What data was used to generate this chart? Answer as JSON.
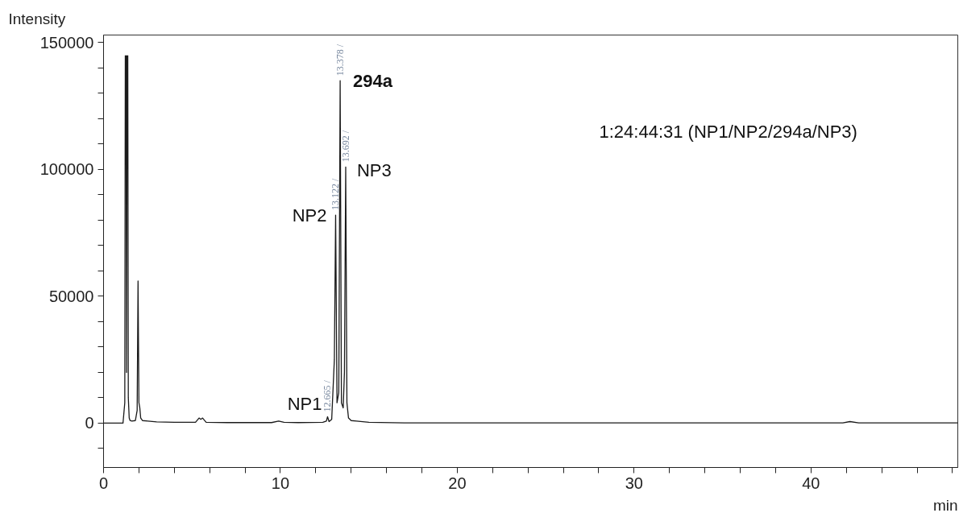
{
  "chart_data": {
    "type": "line",
    "xlabel": "min",
    "ylabel": "Intensity",
    "x": [
      0,
      1.1,
      1.2,
      1.23,
      1.25,
      1.27,
      1.3,
      1.33,
      1.35,
      1.37,
      1.4,
      1.45,
      1.5,
      1.6,
      1.8,
      1.9,
      1.95,
      2.0,
      2.05,
      2.1,
      2.2,
      2.5,
      3,
      4,
      5.2,
      5.4,
      5.5,
      5.6,
      5.8,
      7,
      9.5,
      9.9,
      10.2,
      11,
      12.4,
      12.6,
      12.665,
      12.75,
      12.9,
      13.05,
      13.122,
      13.2,
      13.3,
      13.378,
      13.45,
      13.55,
      13.62,
      13.692,
      13.76,
      13.85,
      14.0,
      14.3,
      15,
      17,
      20,
      30,
      40,
      41.8,
      42.2,
      42.7,
      45,
      48.3
    ],
    "series": [
      {
        "color": "#1a1a1a",
        "values": [
          0,
          0,
          8000,
          145000,
          null,
          145000,
          20000,
          145000,
          null,
          145000,
          10000,
          2000,
          1000,
          800,
          1000,
          5000,
          56000,
          8000,
          6000,
          2000,
          1000,
          800,
          500,
          300,
          300,
          2000,
          1500,
          2000,
          300,
          200,
          200,
          800,
          300,
          200,
          300,
          800,
          2500,
          600,
          1500,
          25000,
          82000,
          8000,
          12000,
          135000,
          8000,
          6000,
          20000,
          101000,
          8000,
          2000,
          1000,
          800,
          300,
          100,
          100,
          100,
          100,
          100,
          600,
          100,
          100,
          100
        ]
      }
    ],
    "xlim": [
      0,
      48.3
    ],
    "ylim": [
      -17500,
      153000
    ],
    "xticks": [
      0,
      {
        "value": 2,
        "label": null
      },
      {
        "value": 4,
        "label": null
      },
      {
        "value": 6,
        "label": null
      },
      {
        "value": 8,
        "label": null
      },
      10,
      {
        "value": 12,
        "label": null
      },
      {
        "value": 14,
        "label": null
      },
      {
        "value": 16,
        "label": null
      },
      {
        "value": 18,
        "label": null
      },
      20,
      {
        "value": 22,
        "label": null
      },
      {
        "value": 24,
        "label": null
      },
      {
        "value": 26,
        "label": null
      },
      {
        "value": 28,
        "label": null
      },
      30,
      {
        "value": 32,
        "label": null
      },
      {
        "value": 34,
        "label": null
      },
      {
        "value": 36,
        "label": null
      },
      {
        "value": 38,
        "label": null
      },
      40,
      {
        "value": 42,
        "label": null
      },
      {
        "value": 44,
        "label": null
      },
      {
        "value": 46,
        "label": null
      },
      {
        "value": 48,
        "label": null
      }
    ],
    "yticks": [
      {
        "value": -10000,
        "label": null
      },
      0,
      {
        "value": 10000,
        "label": null
      },
      {
        "value": 20000,
        "label": null
      },
      {
        "value": 30000,
        "label": null
      },
      {
        "value": 40000,
        "label": null
      },
      50000,
      {
        "value": 60000,
        "label": null
      },
      {
        "value": 70000,
        "label": null
      },
      {
        "value": 80000,
        "label": null
      },
      {
        "value": 90000,
        "label": null
      },
      100000,
      {
        "value": 110000,
        "label": null
      },
      {
        "value": 120000,
        "label": null
      },
      {
        "value": 130000,
        "label": null
      },
      {
        "value": 140000,
        "label": null
      },
      150000
    ],
    "grid": false,
    "marker": "none",
    "line_style": "solid",
    "annotations": [
      {
        "text": "NP1",
        "x": 12.665,
        "y": 2500
      },
      {
        "text": "NP2",
        "x": 13.122,
        "y": 82000
      },
      {
        "text": "294a",
        "x": 13.378,
        "y": 135000
      },
      {
        "text": "NP3",
        "x": 13.692,
        "y": 101000
      },
      {
        "text": "12.665 /",
        "x": 12.665,
        "y": 2500
      },
      {
        "text": "13.122 /",
        "x": 13.122,
        "y": 82000
      },
      {
        "text": "13.378 /",
        "x": 13.378,
        "y": 135000
      },
      {
        "text": "13.692 /",
        "x": 13.692,
        "y": 101000
      },
      "1:24:44:31 (NP1/NP2/294a/NP3)"
    ]
  }
}
